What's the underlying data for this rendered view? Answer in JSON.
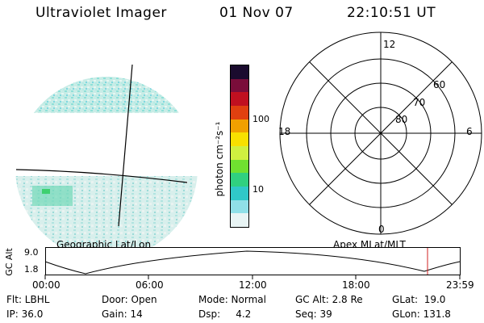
{
  "header": {
    "title": "Ultraviolet Imager",
    "date": "01 Nov 07",
    "time": "22:10:51 UT"
  },
  "colorbar": {
    "unit_label": "photon cm⁻²s⁻¹",
    "ticks": [
      "100",
      "10"
    ],
    "colors": [
      "#1a0b2e",
      "#7a0d3a",
      "#c01020",
      "#e04010",
      "#f0a000",
      "#f8e000",
      "#d0f040",
      "#70e030",
      "#30d080",
      "#30c8c8",
      "#90e0e8",
      "#e8f4f4"
    ]
  },
  "polar_grid": {
    "ring_labels": [
      "60",
      "70",
      "80"
    ],
    "mlt_labels": {
      "top": "12",
      "left": "18",
      "right": "6",
      "bottom": "0"
    }
  },
  "image_labels": {
    "left_caption": "Geographic Lat/Lon",
    "right_caption": "Apex MLat/MLT"
  },
  "orbit_plot": {
    "ylabel": "GC Alt",
    "ytick_high": "9.0",
    "ytick_low": "1.8",
    "xticks": [
      "00:00",
      "06:00",
      "12:00",
      "18:00",
      "23:59"
    ],
    "marker_color": "#d02020"
  },
  "info": {
    "filter": "Flt: LBHL",
    "ip": "IP: 36.0",
    "door": "Door: Open",
    "gain": "Gain: 14",
    "mode": "Mode: Normal",
    "dsp": "Dsp:     4.2",
    "gc_alt": "GC Alt: 2.8 Re",
    "seq": "Seq: 39",
    "glat": "GLat:  19.0",
    "glon": "GLon: 131.8"
  }
}
